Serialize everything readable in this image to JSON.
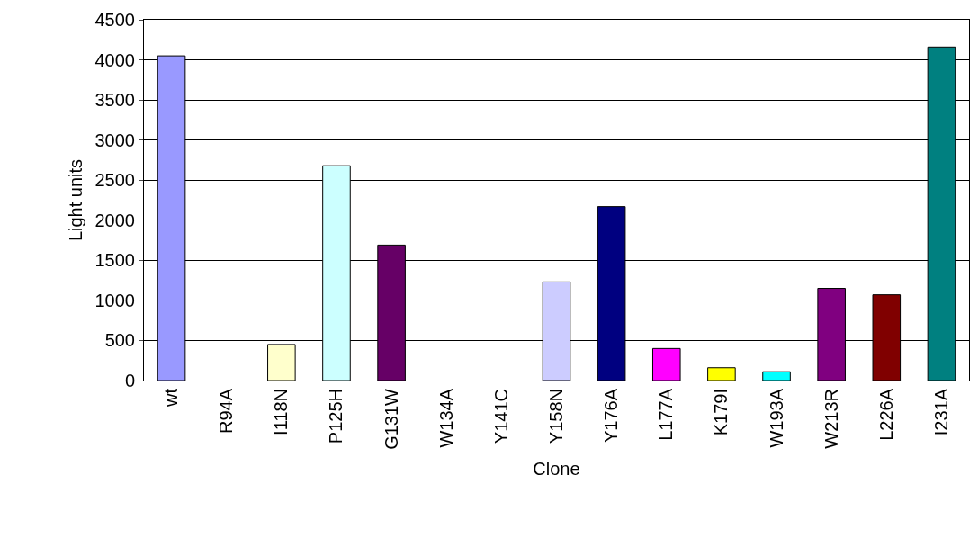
{
  "chart_data": {
    "type": "bar",
    "xlabel": "Clone",
    "ylabel": "Light units",
    "categories": [
      "wt",
      "R94A",
      "I118N",
      "P125H",
      "G131W",
      "W134A",
      "Y141C",
      "Y158N",
      "Y176A",
      "L177A",
      "K179I",
      "W193A",
      "W213R",
      "L226A",
      "I231A"
    ],
    "values": [
      4050,
      0,
      450,
      2680,
      1690,
      0,
      0,
      1230,
      2170,
      400,
      160,
      110,
      1150,
      1070,
      4160
    ],
    "colors": [
      "#9999ff",
      null,
      "#ffffcc",
      "#ccffff",
      "#660066",
      null,
      null,
      "#ccccff",
      "#000080",
      "#ff00ff",
      "#ffff00",
      "#00ffff",
      "#800080",
      "#800000",
      "#008080"
    ],
    "ylim": [
      0,
      4500
    ],
    "yticks": [
      0,
      500,
      1000,
      1500,
      2000,
      2500,
      3000,
      3500,
      4000,
      4500
    ],
    "grid": "y"
  }
}
